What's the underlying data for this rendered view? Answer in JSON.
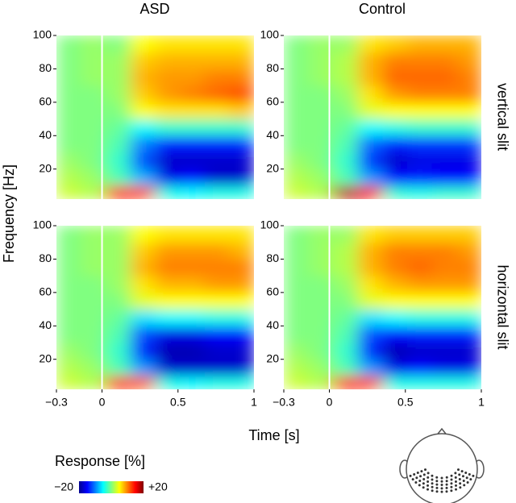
{
  "columns": [
    "ASD",
    "Control"
  ],
  "rows": [
    "vertical slit",
    "horizontal slit"
  ],
  "x_label": "Time [s]",
  "y_label": "Frequency [Hz]",
  "onset": 0,
  "colorbar": {
    "title": "Response [%]",
    "ticks": [
      {
        "value": -20,
        "label": "−20"
      },
      {
        "value": 20,
        "label": "+20"
      }
    ]
  },
  "chart_data": [
    {
      "type": "heatmap",
      "xbins": [
        -0.3,
        -0.1375,
        0.025,
        0.1875,
        0.35,
        0.5125,
        0.675,
        0.8375,
        1.0
      ],
      "ybins": [
        2,
        10,
        20,
        30,
        40,
        50,
        60,
        70,
        80,
        90,
        100
      ],
      "xlim": [
        -0.3,
        1
      ],
      "ylim": [
        2,
        100
      ],
      "yticks": [
        20,
        40,
        60,
        80,
        100
      ],
      "z": [
        [
          3,
          2,
          15,
          12,
          -4,
          -5,
          -4,
          -4
        ],
        [
          2,
          1,
          -2,
          -8,
          -16,
          -15,
          -17,
          -17
        ],
        [
          1,
          0,
          -3,
          -12,
          -17,
          -17,
          -17,
          -17
        ],
        [
          0,
          0,
          -2,
          -10,
          -14,
          -14,
          -14,
          -14
        ],
        [
          0,
          0,
          -1,
          -5,
          -3,
          -3,
          -3,
          -3
        ],
        [
          0,
          0,
          0,
          5,
          6,
          6,
          6,
          7
        ],
        [
          0,
          0,
          1,
          7,
          9,
          10,
          11,
          12
        ],
        [
          0,
          1,
          1,
          8,
          9,
          9,
          10,
          10
        ],
        [
          0,
          1,
          1,
          7,
          8,
          8,
          8,
          8
        ],
        [
          0,
          1,
          0,
          5,
          6,
          6,
          6,
          6
        ]
      ]
    },
    {
      "type": "heatmap",
      "xbins": [
        -0.3,
        -0.1375,
        0.025,
        0.1875,
        0.35,
        0.5125,
        0.675,
        0.8375,
        1.0
      ],
      "ybins": [
        2,
        10,
        20,
        30,
        40,
        50,
        60,
        70,
        80,
        90,
        100
      ],
      "xlim": [
        -0.3,
        1
      ],
      "ylim": [
        2,
        100
      ],
      "yticks": [
        20,
        40,
        60,
        80,
        100
      ],
      "z": [
        [
          3,
          2,
          18,
          14,
          -3,
          -4,
          -3,
          -3
        ],
        [
          2,
          1,
          -2,
          -9,
          -15,
          -14,
          -15,
          -15
        ],
        [
          1,
          0,
          -3,
          -13,
          -17,
          -16,
          -16,
          -16
        ],
        [
          0,
          0,
          -2,
          -11,
          -14,
          -13,
          -13,
          -13
        ],
        [
          0,
          0,
          -1,
          -5,
          -4,
          -3,
          -3,
          -3
        ],
        [
          0,
          0,
          0,
          4,
          5,
          5,
          5,
          5
        ],
        [
          0,
          0,
          1,
          6,
          9,
          10,
          10,
          10
        ],
        [
          0,
          1,
          2,
          8,
          11,
          11,
          11,
          10
        ],
        [
          0,
          1,
          2,
          8,
          10,
          10,
          10,
          9
        ],
        [
          0,
          1,
          1,
          6,
          7,
          8,
          8,
          8
        ]
      ]
    },
    {
      "type": "heatmap",
      "xbins": [
        -0.3,
        -0.1375,
        0.025,
        0.1875,
        0.35,
        0.5125,
        0.675,
        0.8375,
        1.0
      ],
      "ybins": [
        2,
        10,
        20,
        30,
        40,
        50,
        60,
        70,
        80,
        90,
        100
      ],
      "xlim": [
        -0.3,
        1
      ],
      "ylim": [
        2,
        100
      ],
      "yticks": [
        20,
        40,
        60,
        80,
        100
      ],
      "xticks": [
        {
          "value": -0.3,
          "label": "−0.3"
        },
        0,
        0.5,
        1
      ],
      "z": [
        [
          3,
          2,
          14,
          11,
          -4,
          -5,
          -4,
          -4
        ],
        [
          2,
          1,
          -2,
          -9,
          -17,
          -17,
          -17,
          -17
        ],
        [
          1,
          0,
          -3,
          -14,
          -18,
          -18,
          -17,
          -17
        ],
        [
          0,
          0,
          -2,
          -12,
          -16,
          -16,
          -15,
          -15
        ],
        [
          0,
          0,
          -1,
          -6,
          -5,
          -5,
          -4,
          -4
        ],
        [
          0,
          0,
          0,
          4,
          5,
          5,
          5,
          5
        ],
        [
          0,
          0,
          1,
          6,
          8,
          8,
          9,
          9
        ],
        [
          0,
          1,
          1,
          8,
          10,
          10,
          10,
          10
        ],
        [
          0,
          1,
          1,
          7,
          9,
          9,
          9,
          8
        ],
        [
          0,
          1,
          1,
          5,
          6,
          6,
          6,
          6
        ]
      ]
    },
    {
      "type": "heatmap",
      "xbins": [
        -0.3,
        -0.1375,
        0.025,
        0.1875,
        0.35,
        0.5125,
        0.675,
        0.8375,
        1.0
      ],
      "ybins": [
        2,
        10,
        20,
        30,
        40,
        50,
        60,
        70,
        80,
        90,
        100
      ],
      "xlim": [
        -0.3,
        1
      ],
      "ylim": [
        2,
        100
      ],
      "yticks": [
        20,
        40,
        60,
        80,
        100
      ],
      "xticks": [
        {
          "value": -0.3,
          "label": "−0.3"
        },
        0,
        0.5,
        1
      ],
      "z": [
        [
          3,
          2,
          15,
          12,
          -4,
          -4,
          -4,
          -4
        ],
        [
          2,
          1,
          -2,
          -9,
          -16,
          -15,
          -16,
          -16
        ],
        [
          1,
          0,
          -3,
          -14,
          -18,
          -17,
          -17,
          -17
        ],
        [
          0,
          0,
          -2,
          -12,
          -15,
          -14,
          -14,
          -14
        ],
        [
          0,
          0,
          -1,
          -6,
          -5,
          -4,
          -4,
          -4
        ],
        [
          0,
          0,
          0,
          4,
          5,
          5,
          5,
          5
        ],
        [
          0,
          0,
          1,
          6,
          8,
          9,
          9,
          9
        ],
        [
          0,
          1,
          2,
          8,
          10,
          11,
          10,
          10
        ],
        [
          0,
          1,
          2,
          8,
          10,
          10,
          10,
          9
        ],
        [
          0,
          1,
          1,
          6,
          7,
          7,
          7,
          7
        ]
      ]
    }
  ]
}
